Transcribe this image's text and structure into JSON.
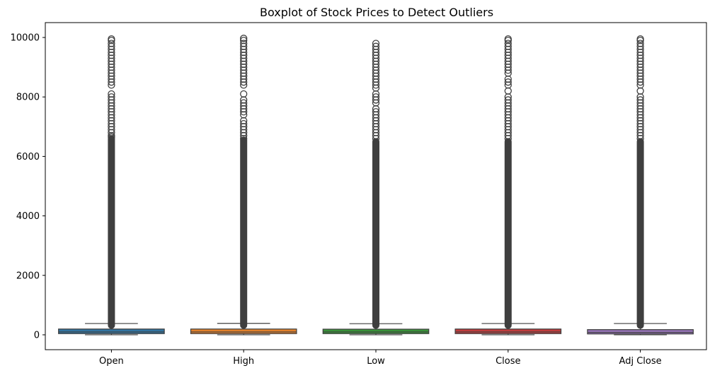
{
  "chart_data": {
    "type": "boxplot",
    "title": "Boxplot of Stock Prices to Detect Outliers",
    "xlabel": "",
    "ylabel": "",
    "ylim": [
      -500,
      10500
    ],
    "yticks": [
      0,
      2000,
      4000,
      6000,
      8000,
      10000
    ],
    "ytick_labels": [
      "0",
      "2000",
      "4000",
      "6000",
      "8000",
      "10000"
    ],
    "grid": false,
    "legend": "none",
    "categories": [
      "Open",
      "High",
      "Low",
      "Close",
      "Adj Close"
    ],
    "colors": [
      "#3274a1",
      "#e1812c",
      "#3a923a",
      "#c03d3e",
      "#9372b2"
    ],
    "series": [
      {
        "category": "Open",
        "whisker_low": 0,
        "q1": 40,
        "median": 95,
        "q3": 195,
        "whisker_high": 380,
        "dense_outliers": [
          320,
          6600
        ],
        "sparse_outliers": [
          6650,
          6700,
          6800,
          6900,
          7000,
          7100,
          7200,
          7300,
          7400,
          7500,
          7600,
          7700,
          7800,
          7900,
          8000,
          8100,
          8400,
          8500,
          8600,
          8700,
          8800,
          8900,
          9000,
          9100,
          9200,
          9300,
          9400,
          9500,
          9600,
          9700,
          9800,
          9900,
          9950
        ]
      },
      {
        "category": "High",
        "whisker_low": 0,
        "q1": 40,
        "median": 95,
        "q3": 195,
        "whisker_high": 385,
        "dense_outliers": [
          320,
          6550
        ],
        "sparse_outliers": [
          6600,
          6700,
          6800,
          6900,
          7000,
          7100,
          7200,
          7400,
          7500,
          7600,
          7700,
          7800,
          7900,
          8100,
          8400,
          8500,
          8600,
          8700,
          8800,
          8900,
          9000,
          9100,
          9200,
          9300,
          9400,
          9500,
          9600,
          9700,
          9800,
          9900,
          9970
        ]
      },
      {
        "category": "Low",
        "whisker_low": 0,
        "q1": 40,
        "median": 95,
        "q3": 190,
        "whisker_high": 375,
        "dense_outliers": [
          320,
          6500
        ],
        "sparse_outliers": [
          6600,
          6700,
          6800,
          6900,
          7000,
          7100,
          7200,
          7300,
          7400,
          7500,
          7600,
          7800,
          7900,
          8000,
          8100,
          8300,
          8400,
          8500,
          8600,
          8700,
          8800,
          8900,
          9000,
          9100,
          9200,
          9300,
          9400,
          9500,
          9600,
          9700,
          9800
        ]
      },
      {
        "category": "Close",
        "whisker_low": 0,
        "q1": 40,
        "median": 95,
        "q3": 195,
        "whisker_high": 380,
        "dense_outliers": [
          320,
          6500
        ],
        "sparse_outliers": [
          6600,
          6700,
          6800,
          6900,
          7000,
          7100,
          7200,
          7300,
          7400,
          7500,
          7600,
          7700,
          7800,
          7900,
          8000,
          8200,
          8400,
          8500,
          8600,
          8800,
          8900,
          9000,
          9100,
          9200,
          9300,
          9400,
          9500,
          9600,
          9700,
          9800,
          9900,
          9950
        ]
      },
      {
        "category": "Adj Close",
        "whisker_low": 0,
        "q1": 30,
        "median": 80,
        "q3": 175,
        "whisker_high": 380,
        "dense_outliers": [
          320,
          6500
        ],
        "sparse_outliers": [
          6600,
          6700,
          6800,
          6900,
          7000,
          7100,
          7200,
          7300,
          7400,
          7500,
          7600,
          7700,
          7800,
          7900,
          8000,
          8200,
          8400,
          8500,
          8600,
          8700,
          8800,
          8900,
          9000,
          9100,
          9200,
          9300,
          9400,
          9500,
          9600,
          9700,
          9800,
          9900,
          9950
        ]
      }
    ]
  }
}
